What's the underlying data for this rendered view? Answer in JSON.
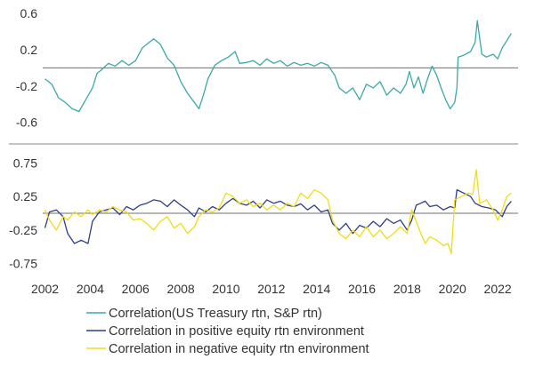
{
  "colors": {
    "treasury_sp": "#3aa9a8",
    "positive_env": "#2e3e8c",
    "negative_env": "#f2dc16",
    "zero_line": "#6f6f6f",
    "divider": "#8a8a8a",
    "text": "#333333"
  },
  "chart_data": [
    {
      "type": "line",
      "xlim": [
        2001.9,
        2022.9
      ],
      "ylim": [
        -0.72,
        0.65
      ],
      "y_ticks": [
        0.6,
        0.2,
        -0.2,
        -0.6
      ],
      "y_tick_labels": [
        "0.6",
        "0.2",
        "-0.2",
        "-0.6"
      ],
      "grid": false,
      "reference_line": 0,
      "series": [
        {
          "name": "Correlation(US Treasury rtn, S&P rtn)",
          "color": "#3aa9a8",
          "points": [
            [
              2002.0,
              -0.12
            ],
            [
              2002.3,
              -0.18
            ],
            [
              2002.6,
              -0.33
            ],
            [
              2002.9,
              -0.38
            ],
            [
              2003.2,
              -0.45
            ],
            [
              2003.5,
              -0.48
            ],
            [
              2003.8,
              -0.35
            ],
            [
              2004.1,
              -0.22
            ],
            [
              2004.3,
              -0.06
            ],
            [
              2004.5,
              -0.02
            ],
            [
              2004.8,
              0.05
            ],
            [
              2005.1,
              0.02
            ],
            [
              2005.4,
              0.08
            ],
            [
              2005.7,
              0.03
            ],
            [
              2006.0,
              0.08
            ],
            [
              2006.3,
              0.22
            ],
            [
              2006.6,
              0.28
            ],
            [
              2006.8,
              0.32
            ],
            [
              2007.1,
              0.26
            ],
            [
              2007.4,
              0.11
            ],
            [
              2007.7,
              0.03
            ],
            [
              2008.0,
              -0.15
            ],
            [
              2008.3,
              -0.28
            ],
            [
              2008.6,
              -0.38
            ],
            [
              2008.8,
              -0.45
            ],
            [
              2009.0,
              -0.3
            ],
            [
              2009.2,
              -0.12
            ],
            [
              2009.5,
              0.03
            ],
            [
              2009.8,
              0.08
            ],
            [
              2010.1,
              0.12
            ],
            [
              2010.4,
              0.18
            ],
            [
              2010.6,
              0.05
            ],
            [
              2010.9,
              0.06
            ],
            [
              2011.2,
              0.08
            ],
            [
              2011.5,
              0.03
            ],
            [
              2011.8,
              0.1
            ],
            [
              2012.1,
              0.05
            ],
            [
              2012.4,
              0.08
            ],
            [
              2012.7,
              0.02
            ],
            [
              2013.0,
              0.06
            ],
            [
              2013.3,
              0.03
            ],
            [
              2013.6,
              0.05
            ],
            [
              2013.9,
              0.02
            ],
            [
              2014.2,
              0.06
            ],
            [
              2014.5,
              0.03
            ],
            [
              2014.8,
              -0.08
            ],
            [
              2015.0,
              -0.22
            ],
            [
              2015.3,
              -0.28
            ],
            [
              2015.6,
              -0.22
            ],
            [
              2015.9,
              -0.35
            ],
            [
              2016.2,
              -0.18
            ],
            [
              2016.5,
              -0.22
            ],
            [
              2016.8,
              -0.15
            ],
            [
              2017.1,
              -0.3
            ],
            [
              2017.4,
              -0.22
            ],
            [
              2017.7,
              -0.28
            ],
            [
              2017.95,
              -0.18
            ],
            [
              2018.1,
              -0.04
            ],
            [
              2018.3,
              -0.22
            ],
            [
              2018.5,
              -0.1
            ],
            [
              2018.7,
              -0.28
            ],
            [
              2018.9,
              -0.12
            ],
            [
              2019.1,
              0.02
            ],
            [
              2019.3,
              -0.08
            ],
            [
              2019.5,
              -0.22
            ],
            [
              2019.7,
              -0.35
            ],
            [
              2019.9,
              -0.45
            ],
            [
              2020.1,
              -0.38
            ],
            [
              2020.2,
              -0.22
            ],
            [
              2020.25,
              0.12
            ],
            [
              2020.5,
              0.14
            ],
            [
              2020.8,
              0.18
            ],
            [
              2021.0,
              0.28
            ],
            [
              2021.1,
              0.52
            ],
            [
              2021.3,
              0.15
            ],
            [
              2021.5,
              0.12
            ],
            [
              2021.8,
              0.15
            ],
            [
              2022.0,
              0.1
            ],
            [
              2022.2,
              0.22
            ],
            [
              2022.4,
              0.3
            ],
            [
              2022.6,
              0.38
            ]
          ]
        }
      ]
    },
    {
      "type": "line",
      "xlim": [
        2001.9,
        2022.9
      ],
      "ylim": [
        -0.82,
        0.86
      ],
      "y_ticks": [
        0.75,
        0.25,
        -0.25,
        -0.75
      ],
      "y_tick_labels": [
        "0.75",
        "0.25",
        "-0.25",
        "-0.75"
      ],
      "x_ticks": [
        2002,
        2004,
        2006,
        2008,
        2010,
        2012,
        2014,
        2016,
        2018,
        2020,
        2022
      ],
      "x_tick_labels": [
        "2002",
        "2004",
        "2006",
        "2008",
        "2010",
        "2012",
        "2014",
        "2016",
        "2018",
        "2020",
        "2022"
      ],
      "grid": false,
      "reference_line": 0,
      "series": [
        {
          "name": "Correlation in positive equity rtn environment",
          "color": "#2e3e8c",
          "points": [
            [
              2002.0,
              -0.22
            ],
            [
              2002.2,
              0.02
            ],
            [
              2002.5,
              0.05
            ],
            [
              2002.8,
              -0.05
            ],
            [
              2003.0,
              -0.3
            ],
            [
              2003.3,
              -0.45
            ],
            [
              2003.6,
              -0.4
            ],
            [
              2003.9,
              -0.45
            ],
            [
              2004.1,
              -0.12
            ],
            [
              2004.4,
              0.02
            ],
            [
              2004.7,
              0.05
            ],
            [
              2005.0,
              0.08
            ],
            [
              2005.3,
              -0.02
            ],
            [
              2005.6,
              0.1
            ],
            [
              2005.9,
              0.05
            ],
            [
              2006.2,
              0.12
            ],
            [
              2006.5,
              0.15
            ],
            [
              2006.8,
              0.2
            ],
            [
              2007.1,
              0.18
            ],
            [
              2007.4,
              0.1
            ],
            [
              2007.7,
              0.2
            ],
            [
              2008.0,
              0.12
            ],
            [
              2008.3,
              0.05
            ],
            [
              2008.6,
              -0.05
            ],
            [
              2008.8,
              0.08
            ],
            [
              2009.1,
              0.02
            ],
            [
              2009.4,
              0.1
            ],
            [
              2009.7,
              0.05
            ],
            [
              2010.0,
              0.15
            ],
            [
              2010.3,
              0.22
            ],
            [
              2010.6,
              0.15
            ],
            [
              2010.9,
              0.12
            ],
            [
              2011.2,
              0.18
            ],
            [
              2011.5,
              0.08
            ],
            [
              2011.8,
              0.2
            ],
            [
              2012.1,
              0.15
            ],
            [
              2012.4,
              0.18
            ],
            [
              2012.7,
              0.12
            ],
            [
              2013.0,
              0.1
            ],
            [
              2013.3,
              0.14
            ],
            [
              2013.6,
              0.05
            ],
            [
              2013.9,
              0.12
            ],
            [
              2014.2,
              0.02
            ],
            [
              2014.5,
              0.05
            ],
            [
              2014.7,
              -0.15
            ],
            [
              2015.0,
              -0.25
            ],
            [
              2015.3,
              -0.15
            ],
            [
              2015.6,
              -0.3
            ],
            [
              2015.9,
              -0.18
            ],
            [
              2016.2,
              -0.22
            ],
            [
              2016.5,
              -0.12
            ],
            [
              2016.8,
              -0.2
            ],
            [
              2017.1,
              -0.08
            ],
            [
              2017.4,
              -0.15
            ],
            [
              2017.7,
              -0.1
            ],
            [
              2018.0,
              -0.25
            ],
            [
              2018.2,
              -0.1
            ],
            [
              2018.4,
              0.12
            ],
            [
              2018.6,
              0.15
            ],
            [
              2018.8,
              0.18
            ],
            [
              2019.0,
              0.1
            ],
            [
              2019.3,
              0.12
            ],
            [
              2019.6,
              0.05
            ],
            [
              2019.9,
              0.1
            ],
            [
              2020.1,
              0.08
            ],
            [
              2020.2,
              0.35
            ],
            [
              2020.5,
              0.3
            ],
            [
              2020.8,
              0.25
            ],
            [
              2021.0,
              0.15
            ],
            [
              2021.3,
              0.1
            ],
            [
              2021.6,
              0.08
            ],
            [
              2021.9,
              0.05
            ],
            [
              2022.2,
              -0.05
            ],
            [
              2022.4,
              0.1
            ],
            [
              2022.6,
              0.18
            ]
          ]
        },
        {
          "name": "Correlation in negative equity rtn environment",
          "color": "#f2dc16",
          "points": [
            [
              2002.0,
              0.05
            ],
            [
              2002.2,
              -0.1
            ],
            [
              2002.5,
              -0.25
            ],
            [
              2002.8,
              -0.05
            ],
            [
              2003.0,
              -0.1
            ],
            [
              2003.3,
              0.02
            ],
            [
              2003.6,
              -0.05
            ],
            [
              2003.9,
              0.05
            ],
            [
              2004.1,
              -0.02
            ],
            [
              2004.4,
              0.05
            ],
            [
              2004.7,
              0.02
            ],
            [
              2005.0,
              0.1
            ],
            [
              2005.3,
              0.05
            ],
            [
              2005.6,
              0.02
            ],
            [
              2005.9,
              -0.1
            ],
            [
              2006.2,
              -0.08
            ],
            [
              2006.5,
              -0.15
            ],
            [
              2006.8,
              -0.25
            ],
            [
              2007.1,
              -0.12
            ],
            [
              2007.4,
              -0.05
            ],
            [
              2007.7,
              -0.22
            ],
            [
              2008.0,
              -0.15
            ],
            [
              2008.3,
              -0.3
            ],
            [
              2008.6,
              -0.2
            ],
            [
              2008.8,
              -0.05
            ],
            [
              2009.1,
              0.05
            ],
            [
              2009.4,
              0.02
            ],
            [
              2009.7,
              0.08
            ],
            [
              2010.0,
              0.3
            ],
            [
              2010.3,
              0.25
            ],
            [
              2010.6,
              0.15
            ],
            [
              2010.9,
              0.2
            ],
            [
              2011.2,
              0.1
            ],
            [
              2011.5,
              0.15
            ],
            [
              2011.8,
              0.05
            ],
            [
              2012.1,
              0.12
            ],
            [
              2012.4,
              0.05
            ],
            [
              2012.7,
              0.15
            ],
            [
              2013.0,
              0.1
            ],
            [
              2013.3,
              0.3
            ],
            [
              2013.6,
              0.22
            ],
            [
              2013.9,
              0.35
            ],
            [
              2014.2,
              0.3
            ],
            [
              2014.5,
              0.2
            ],
            [
              2014.7,
              -0.1
            ],
            [
              2015.0,
              -0.3
            ],
            [
              2015.3,
              -0.38
            ],
            [
              2015.6,
              -0.25
            ],
            [
              2015.9,
              -0.35
            ],
            [
              2016.2,
              -0.2
            ],
            [
              2016.5,
              -0.35
            ],
            [
              2016.8,
              -0.25
            ],
            [
              2017.1,
              -0.38
            ],
            [
              2017.4,
              -0.3
            ],
            [
              2017.7,
              -0.2
            ],
            [
              2018.0,
              -0.3
            ],
            [
              2018.2,
              0.05
            ],
            [
              2018.4,
              -0.12
            ],
            [
              2018.6,
              -0.3
            ],
            [
              2018.8,
              -0.45
            ],
            [
              2019.0,
              -0.35
            ],
            [
              2019.3,
              -0.4
            ],
            [
              2019.6,
              -0.48
            ],
            [
              2019.8,
              -0.45
            ],
            [
              2019.95,
              -0.6
            ],
            [
              2020.1,
              0.2
            ],
            [
              2020.4,
              0.25
            ],
            [
              2020.7,
              0.3
            ],
            [
              2020.9,
              0.28
            ],
            [
              2021.05,
              0.65
            ],
            [
              2021.2,
              0.15
            ],
            [
              2021.5,
              0.2
            ],
            [
              2021.8,
              0.05
            ],
            [
              2022.0,
              -0.1
            ],
            [
              2022.2,
              0.05
            ],
            [
              2022.4,
              0.25
            ],
            [
              2022.6,
              0.3
            ]
          ]
        }
      ]
    }
  ]
}
